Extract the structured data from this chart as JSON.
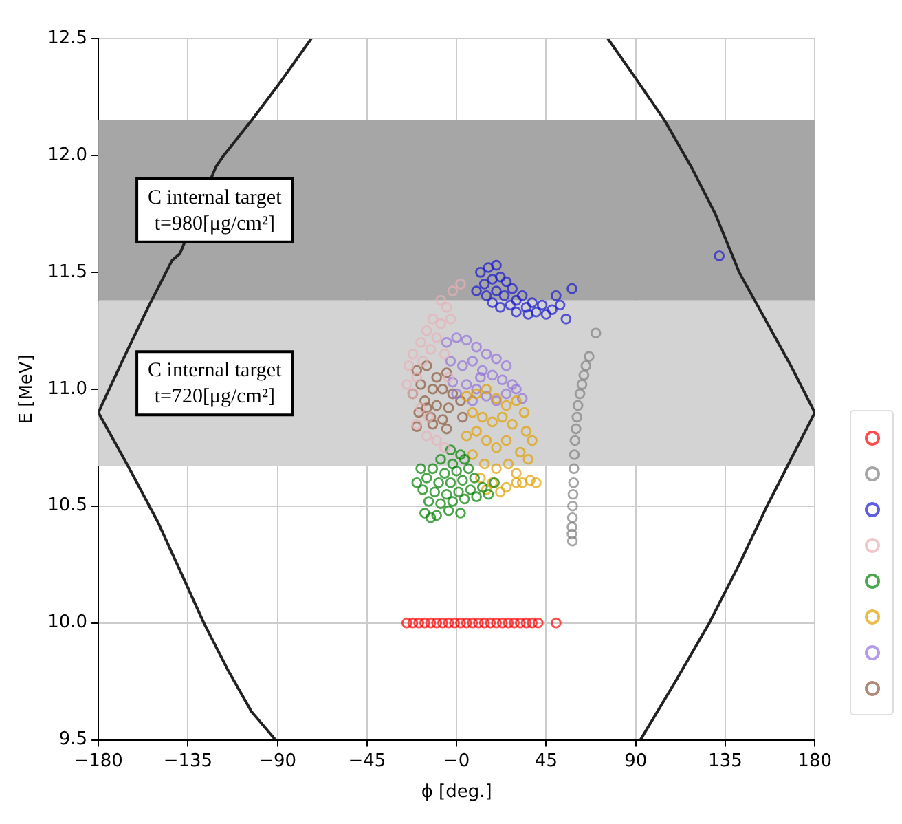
{
  "chart_data": {
    "type": "scatter",
    "xlabel": "ϕ [deg.]",
    "ylabel": "E [MeV]",
    "xlim": [
      -180,
      180
    ],
    "xticks": [
      {
        "value": -180,
        "label": "−180"
      },
      {
        "value": -135,
        "label": "−135"
      },
      {
        "value": -90,
        "label": "−90"
      },
      {
        "value": -45,
        "label": "−45"
      },
      {
        "value": 0,
        "label": "−0"
      },
      45,
      90,
      135,
      180
    ],
    "ylim": [
      9.5,
      12.5
    ],
    "yticks": [
      9.5,
      {
        "value": 10,
        "label": "10.0"
      },
      10.5,
      {
        "value": 11,
        "label": "11.0"
      },
      11.5,
      {
        "value": 12,
        "label": "12.0"
      },
      12.5
    ],
    "grid": true,
    "marker": "circle",
    "bands": [
      {
        "axis": "y",
        "from": 11.38,
        "to": 12.15,
        "label": "C internal target\nt=980[μg/cm²]",
        "color": "#a6a6a6"
      },
      {
        "axis": "y",
        "from": 10.67,
        "to": 11.38,
        "label": "C internal target\nt=720[μg/cm²]",
        "color": "#d3d3d3"
      }
    ],
    "series": [
      {
        "type": "line",
        "color": "#222222",
        "marker": "none",
        "x": [
          -73,
          -88,
          -103,
          -117,
          -121,
          -139,
          -143,
          -155,
          -168,
          -180,
          -165,
          -150,
          -135,
          -127,
          -115,
          -103,
          -91
        ],
        "values": [
          12.5,
          12.32,
          12.15,
          12.0,
          11.95,
          11.58,
          11.55,
          11.35,
          11.12,
          10.9,
          10.67,
          10.43,
          10.15,
          10.0,
          9.8,
          9.62,
          9.5
        ]
      },
      {
        "type": "line",
        "color": "#222222",
        "marker": "none",
        "x": [
          76,
          90,
          104.5,
          118,
          130,
          142,
          155,
          168,
          180,
          168,
          156,
          142,
          127,
          110,
          92.4
        ],
        "values": [
          12.5,
          12.33,
          12.15,
          11.95,
          11.75,
          11.5,
          11.3,
          11.1,
          10.9,
          10.7,
          10.5,
          10.25,
          10.0,
          9.75,
          9.5
        ]
      },
      {
        "color": "#ff0000",
        "x": [
          -25,
          -22,
          -19,
          -16,
          -13,
          -10,
          -7,
          -4,
          -1,
          2,
          5,
          8,
          11,
          14,
          17,
          20,
          23,
          26,
          29,
          32,
          35,
          38,
          41,
          50
        ],
        "values": [
          10,
          10,
          10,
          10,
          10,
          10,
          10,
          10,
          10,
          10,
          10,
          10,
          10,
          10,
          10,
          10,
          10,
          10,
          10,
          10,
          10,
          10,
          10,
          10
        ]
      },
      {
        "color": "#808080",
        "x": [
          70,
          66.6,
          65,
          64,
          63,
          62,
          61,
          60.5,
          60,
          59.5,
          59.2,
          59,
          58.8,
          58.5,
          58.3,
          58.2,
          58,
          58,
          58.2
        ],
        "values": [
          11.24,
          11.14,
          11.1,
          11.06,
          11.02,
          10.98,
          10.93,
          10.88,
          10.83,
          10.78,
          10.72,
          10.66,
          10.6,
          10.55,
          10.5,
          10.45,
          10.41,
          10.38,
          10.35
        ]
      },
      {
        "color": "#1a1ad0",
        "x": [
          12,
          16,
          20,
          14,
          18,
          22,
          25,
          10,
          15,
          20,
          24,
          28,
          30,
          33,
          27,
          22,
          35,
          38,
          40,
          43,
          45,
          48,
          52,
          55,
          50,
          30,
          36,
          18,
          58,
          132
        ],
        "values": [
          11.5,
          11.52,
          11.53,
          11.45,
          11.47,
          11.48,
          11.46,
          11.42,
          11.4,
          11.42,
          11.4,
          11.43,
          11.38,
          11.4,
          11.36,
          11.35,
          11.35,
          11.37,
          11.33,
          11.36,
          11.32,
          11.34,
          11.36,
          11.3,
          11.4,
          11.33,
          11.32,
          11.37,
          11.43,
          11.57
        ]
      },
      {
        "color": "#e8b0b8",
        "x": [
          -2,
          -8,
          -5,
          -12,
          -8,
          -15,
          -10,
          -18,
          -13,
          -22,
          -17,
          -24,
          -20,
          -25,
          -22,
          -18,
          -14,
          -20,
          -15,
          -10,
          -6,
          -3,
          2,
          -6,
          -4
        ],
        "values": [
          11.42,
          11.38,
          11.35,
          11.3,
          11.28,
          11.25,
          11.22,
          11.2,
          11.17,
          11.15,
          11.12,
          11.1,
          11.05,
          11.02,
          10.98,
          10.92,
          10.88,
          10.85,
          10.8,
          10.78,
          10.75,
          11.3,
          11.45,
          11.15,
          11.05
        ]
      },
      {
        "color": "#008000",
        "x": [
          -3,
          2,
          -8,
          -2,
          4,
          -12,
          -6,
          0,
          6,
          -15,
          -9,
          -3,
          3,
          9,
          -17,
          -11,
          -5,
          1,
          7,
          13,
          -14,
          -8,
          -2,
          4,
          10,
          16,
          -16,
          -10,
          -4,
          2,
          -20,
          -18,
          19,
          -13
        ],
        "values": [
          10.74,
          10.72,
          10.7,
          10.68,
          10.7,
          10.66,
          10.64,
          10.65,
          10.66,
          10.62,
          10.6,
          10.6,
          10.61,
          10.62,
          10.57,
          10.56,
          10.55,
          10.56,
          10.57,
          10.58,
          10.52,
          10.51,
          10.52,
          10.53,
          10.54,
          10.55,
          10.47,
          10.46,
          10.48,
          10.47,
          10.6,
          10.66,
          10.6,
          10.45
        ]
      },
      {
        "color": "#e0a000",
        "x": [
          5,
          10,
          15,
          20,
          25,
          30,
          34,
          8,
          13,
          18,
          23,
          28,
          35,
          38,
          5,
          10,
          15,
          20,
          25,
          32,
          36,
          8,
          14,
          20,
          26,
          30,
          12,
          18,
          25,
          30,
          33,
          37,
          40,
          22,
          15
        ],
        "values": [
          10.97,
          10.98,
          11.0,
          10.96,
          10.93,
          10.95,
          10.9,
          10.9,
          10.88,
          10.86,
          10.88,
          10.85,
          10.82,
          10.78,
          10.8,
          10.82,
          10.78,
          10.75,
          10.78,
          10.73,
          10.7,
          10.72,
          10.68,
          10.66,
          10.68,
          10.64,
          10.62,
          10.6,
          10.58,
          10.6,
          10.6,
          10.61,
          10.6,
          10.56,
          10.57
        ]
      },
      {
        "color": "#9370db",
        "x": [
          -5,
          0,
          5,
          10,
          15,
          20,
          25,
          -3,
          3,
          8,
          13,
          18,
          23,
          28,
          -2,
          5,
          10,
          15,
          20,
          30,
          33,
          8,
          0,
          25,
          12
        ],
        "values": [
          11.2,
          11.22,
          11.21,
          11.18,
          11.15,
          11.13,
          11.1,
          11.12,
          11.1,
          11.12,
          11.08,
          11.06,
          11.04,
          11.02,
          11.03,
          11.02,
          11.0,
          10.97,
          10.95,
          11.0,
          10.96,
          10.95,
          10.98,
          10.98,
          11.05
        ]
      },
      {
        "color": "#8b5a3c",
        "x": [
          -20,
          -15,
          -10,
          -5,
          -18,
          -12,
          -7,
          -2,
          -22,
          -16,
          -10,
          -4,
          2,
          -19,
          -13,
          -7,
          -20,
          -12,
          -5,
          -15,
          3
        ],
        "values": [
          11.08,
          11.1,
          11.05,
          11.07,
          11.02,
          11.0,
          11.0,
          10.98,
          10.98,
          10.95,
          10.93,
          10.92,
          10.95,
          10.9,
          10.88,
          10.87,
          10.84,
          10.85,
          10.83,
          10.92,
          10.88
        ]
      }
    ]
  }
}
